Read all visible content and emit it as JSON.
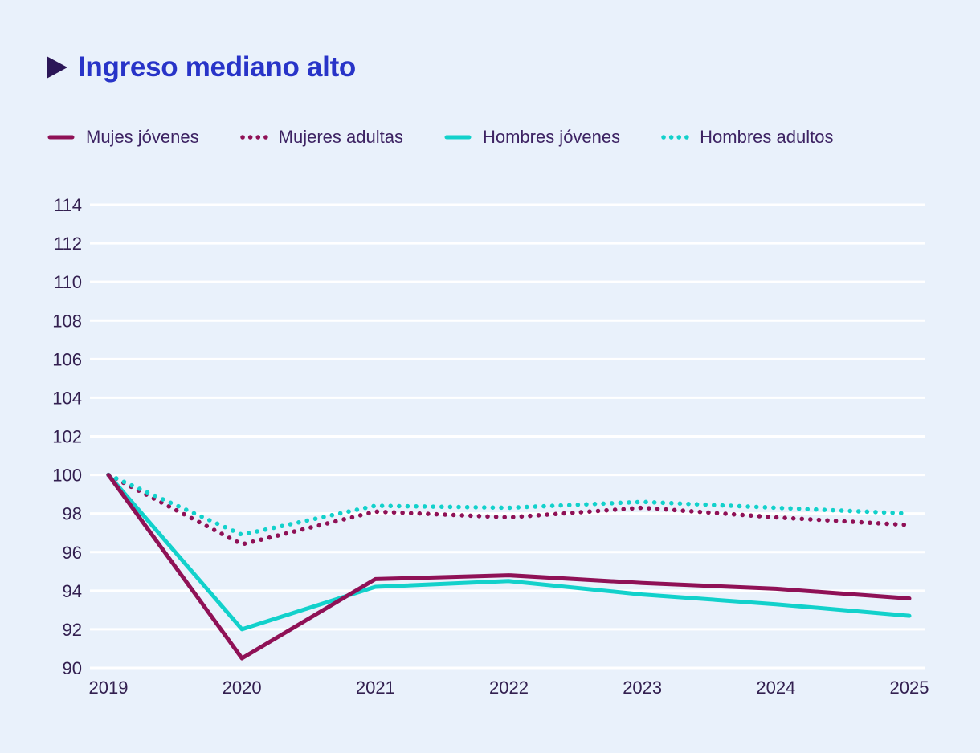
{
  "page": {
    "title": "Ingreso mediano alto"
  },
  "colors": {
    "background": "#e9f1fb",
    "gridline": "#ffffff",
    "title_text": "#2834c8",
    "title_marker": "#2b1657",
    "axis_text": "#332050",
    "legend_text": "#3d2363",
    "magenta_series": "#8f1156",
    "cyan_series": "#12d1cb"
  },
  "icons": {
    "title_marker": "right-pointing-triangle"
  },
  "chart_data": {
    "type": "line",
    "title": "Ingreso mediano alto",
    "x": [
      2019,
      2020,
      2021,
      2022,
      2023,
      2024,
      2025
    ],
    "series": [
      {
        "id": "mujes-jovenes",
        "name": "Mujes jóvenes",
        "style": "solid",
        "color": "#8f1156",
        "values": [
          100,
          90.5,
          94.6,
          94.8,
          94.4,
          94.1,
          93.6
        ]
      },
      {
        "id": "mujeres-adultas",
        "name": "Mujeres adultas",
        "style": "dotted",
        "color": "#8f1156",
        "values": [
          100,
          96.4,
          98.1,
          97.8,
          98.3,
          97.8,
          97.4
        ]
      },
      {
        "id": "hombres-jovenes",
        "name": "Hombres jóvenes",
        "style": "solid",
        "color": "#12d1cb",
        "values": [
          100,
          92.0,
          94.2,
          94.5,
          93.8,
          93.3,
          92.7
        ]
      },
      {
        "id": "hombres-adultos",
        "name": "Hombres adultos",
        "style": "dotted",
        "color": "#12d1cb",
        "values": [
          100,
          96.9,
          98.4,
          98.3,
          98.6,
          98.3,
          98.0
        ]
      }
    ],
    "ylim": [
      90,
      114
    ],
    "ytick_step": 2,
    "yticks": [
      90,
      92,
      94,
      96,
      98,
      100,
      102,
      104,
      106,
      108,
      110,
      112,
      114
    ],
    "xlabel": "",
    "ylabel": "",
    "grid": "horizontal-white",
    "legend_position": "top-left"
  }
}
